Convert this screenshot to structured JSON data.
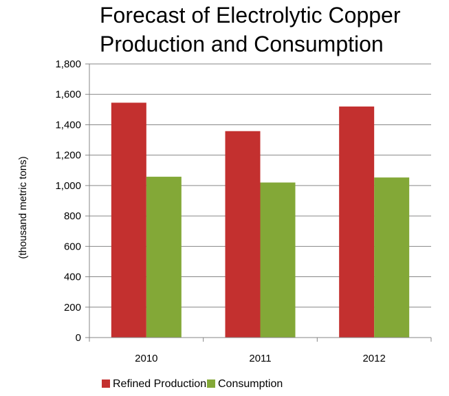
{
  "chart_data": {
    "type": "bar",
    "title_lines": [
      "Forecast of Electrolytic Copper",
      "Production and Consumption"
    ],
    "ylabel": "(thousand metric tons)",
    "xlabel": "",
    "categories": [
      "2010",
      "2011",
      "2012"
    ],
    "ylim": [
      0,
      1800
    ],
    "yticks": [
      0,
      200,
      400,
      600,
      800,
      1000,
      1200,
      1400,
      1600,
      1800
    ],
    "ytick_labels": [
      "0",
      "200",
      "400",
      "600",
      "800",
      "1,000",
      "1,200",
      "1,400",
      "1,600",
      "1,800"
    ],
    "grid": true,
    "legend_position": "bottom",
    "series": [
      {
        "name": "Refined Production",
        "color": "#c3302f",
        "values": [
          1545,
          1358,
          1520
        ]
      },
      {
        "name": "Consumption",
        "color": "#83a837",
        "values": [
          1058,
          1020,
          1053
        ]
      }
    ]
  }
}
